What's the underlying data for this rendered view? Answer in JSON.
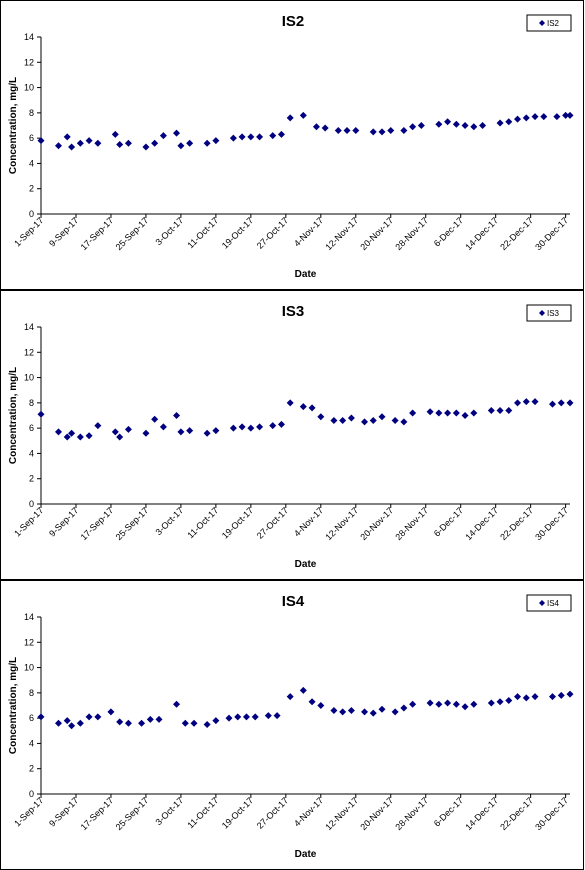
{
  "chart_data": [
    {
      "type": "scatter",
      "title": "IS2",
      "xlabel": "Date",
      "ylabel": "Concentration, mg/L",
      "ylim": [
        0,
        14
      ],
      "yticks": [
        "0",
        "2",
        "4",
        "6",
        "8",
        "10",
        "12",
        "14"
      ],
      "xlim": [
        "2017-09-01",
        "2017-12-31"
      ],
      "xticks": [
        "1-Sep-17",
        "9-Sep-17",
        "17-Sep-17",
        "25-Sep-17",
        "3-Oct-17",
        "11-Oct-17",
        "19-Oct-17",
        "27-Oct-17",
        "4-Nov-17",
        "12-Nov-17",
        "20-Nov-17",
        "28-Nov-17",
        "6-Dec-17",
        "14-Dec-17",
        "22-Dec-17",
        "30-Dec-17"
      ],
      "legend": "top-right",
      "color": "#000080",
      "series": [
        {
          "name": "IS2",
          "points": [
            [
              "2017-09-01",
              5.8
            ],
            [
              "2017-09-05",
              5.4
            ],
            [
              "2017-09-07",
              6.1
            ],
            [
              "2017-09-08",
              5.3
            ],
            [
              "2017-09-10",
              5.6
            ],
            [
              "2017-09-12",
              5.8
            ],
            [
              "2017-09-14",
              5.6
            ],
            [
              "2017-09-18",
              6.3
            ],
            [
              "2017-09-19",
              5.5
            ],
            [
              "2017-09-21",
              5.6
            ],
            [
              "2017-09-25",
              5.3
            ],
            [
              "2017-09-27",
              5.6
            ],
            [
              "2017-09-29",
              6.2
            ],
            [
              "2017-10-02",
              6.4
            ],
            [
              "2017-10-03",
              5.4
            ],
            [
              "2017-10-05",
              5.6
            ],
            [
              "2017-10-09",
              5.6
            ],
            [
              "2017-10-11",
              5.8
            ],
            [
              "2017-10-15",
              6.0
            ],
            [
              "2017-10-17",
              6.1
            ],
            [
              "2017-10-19",
              6.1
            ],
            [
              "2017-10-21",
              6.1
            ],
            [
              "2017-10-24",
              6.2
            ],
            [
              "2017-10-26",
              6.3
            ],
            [
              "2017-10-28",
              7.6
            ],
            [
              "2017-10-31",
              7.8
            ],
            [
              "2017-11-03",
              6.9
            ],
            [
              "2017-11-05",
              6.8
            ],
            [
              "2017-11-08",
              6.6
            ],
            [
              "2017-11-10",
              6.6
            ],
            [
              "2017-11-12",
              6.6
            ],
            [
              "2017-11-16",
              6.5
            ],
            [
              "2017-11-18",
              6.5
            ],
            [
              "2017-11-20",
              6.6
            ],
            [
              "2017-11-23",
              6.6
            ],
            [
              "2017-11-25",
              6.9
            ],
            [
              "2017-11-27",
              7.0
            ],
            [
              "2017-12-01",
              7.1
            ],
            [
              "2017-12-03",
              7.3
            ],
            [
              "2017-12-05",
              7.1
            ],
            [
              "2017-12-07",
              7.0
            ],
            [
              "2017-12-09",
              6.9
            ],
            [
              "2017-12-11",
              7.0
            ],
            [
              "2017-12-15",
              7.2
            ],
            [
              "2017-12-17",
              7.3
            ],
            [
              "2017-12-19",
              7.5
            ],
            [
              "2017-12-21",
              7.6
            ],
            [
              "2017-12-23",
              7.7
            ],
            [
              "2017-12-25",
              7.7
            ],
            [
              "2017-12-28",
              7.7
            ],
            [
              "2017-12-30",
              7.8
            ],
            [
              "2017-12-31",
              7.8
            ]
          ]
        }
      ]
    },
    {
      "type": "scatter",
      "title": "IS3",
      "xlabel": "Date",
      "ylabel": "Concentration, mg/L",
      "ylim": [
        0,
        14
      ],
      "yticks": [
        "0",
        "2",
        "4",
        "6",
        "8",
        "10",
        "12",
        "14"
      ],
      "xlim": [
        "2017-09-01",
        "2017-12-31"
      ],
      "xticks": [
        "1-Sep-17",
        "9-Sep-17",
        "17-Sep-17",
        "25-Sep-17",
        "3-Oct-17",
        "11-Oct-17",
        "19-Oct-17",
        "27-Oct-17",
        "4-Nov-17",
        "12-Nov-17",
        "20-Nov-17",
        "28-Nov-17",
        "6-Dec-17",
        "14-Dec-17",
        "22-Dec-17",
        "30-Dec-17"
      ],
      "legend": "top-right",
      "color": "#000080",
      "series": [
        {
          "name": "IS3",
          "points": [
            [
              "2017-09-01",
              7.1
            ],
            [
              "2017-09-05",
              5.7
            ],
            [
              "2017-09-07",
              5.3
            ],
            [
              "2017-09-08",
              5.6
            ],
            [
              "2017-09-10",
              5.3
            ],
            [
              "2017-09-12",
              5.4
            ],
            [
              "2017-09-14",
              6.2
            ],
            [
              "2017-09-18",
              5.7
            ],
            [
              "2017-09-19",
              5.3
            ],
            [
              "2017-09-21",
              5.9
            ],
            [
              "2017-09-25",
              5.6
            ],
            [
              "2017-09-27",
              6.7
            ],
            [
              "2017-09-29",
              6.1
            ],
            [
              "2017-10-02",
              7.0
            ],
            [
              "2017-10-03",
              5.7
            ],
            [
              "2017-10-05",
              5.8
            ],
            [
              "2017-10-09",
              5.6
            ],
            [
              "2017-10-11",
              5.8
            ],
            [
              "2017-10-15",
              6.0
            ],
            [
              "2017-10-17",
              6.1
            ],
            [
              "2017-10-19",
              6.0
            ],
            [
              "2017-10-21",
              6.1
            ],
            [
              "2017-10-24",
              6.2
            ],
            [
              "2017-10-26",
              6.3
            ],
            [
              "2017-10-28",
              8.0
            ],
            [
              "2017-10-31",
              7.7
            ],
            [
              "2017-11-02",
              7.6
            ],
            [
              "2017-11-04",
              6.9
            ],
            [
              "2017-11-07",
              6.6
            ],
            [
              "2017-11-09",
              6.6
            ],
            [
              "2017-11-11",
              6.8
            ],
            [
              "2017-11-14",
              6.5
            ],
            [
              "2017-11-16",
              6.6
            ],
            [
              "2017-11-18",
              6.9
            ],
            [
              "2017-11-21",
              6.6
            ],
            [
              "2017-11-23",
              6.5
            ],
            [
              "2017-11-25",
              7.2
            ],
            [
              "2017-11-29",
              7.3
            ],
            [
              "2017-12-01",
              7.2
            ],
            [
              "2017-12-03",
              7.2
            ],
            [
              "2017-12-05",
              7.2
            ],
            [
              "2017-12-07",
              7.0
            ],
            [
              "2017-12-09",
              7.2
            ],
            [
              "2017-12-13",
              7.4
            ],
            [
              "2017-12-15",
              7.4
            ],
            [
              "2017-12-17",
              7.4
            ],
            [
              "2017-12-19",
              8.0
            ],
            [
              "2017-12-21",
              8.1
            ],
            [
              "2017-12-23",
              8.1
            ],
            [
              "2017-12-27",
              7.9
            ],
            [
              "2017-12-29",
              8.0
            ],
            [
              "2017-12-31",
              8.0
            ]
          ]
        }
      ]
    },
    {
      "type": "scatter",
      "title": "IS4",
      "xlabel": "Date",
      "ylabel": "Concentration, mg/L",
      "ylim": [
        0,
        14
      ],
      "yticks": [
        "0",
        "2",
        "4",
        "6",
        "8",
        "10",
        "12",
        "14"
      ],
      "xlim": [
        "2017-09-01",
        "2017-12-31"
      ],
      "xticks": [
        "1-Sep-17",
        "9-Sep-17",
        "17-Sep-17",
        "25-Sep-17",
        "3-Oct-17",
        "11-Oct-17",
        "19-Oct-17",
        "27-Oct-17",
        "4-Nov-17",
        "12-Nov-17",
        "20-Nov-17",
        "28-Nov-17",
        "6-Dec-17",
        "14-Dec-17",
        "22-Dec-17",
        "30-Dec-17"
      ],
      "legend": "top-right",
      "color": "#000080",
      "series": [
        {
          "name": "IS4",
          "points": [
            [
              "2017-09-01",
              6.1
            ],
            [
              "2017-09-05",
              5.6
            ],
            [
              "2017-09-07",
              5.8
            ],
            [
              "2017-09-08",
              5.4
            ],
            [
              "2017-09-10",
              5.6
            ],
            [
              "2017-09-12",
              6.1
            ],
            [
              "2017-09-14",
              6.1
            ],
            [
              "2017-09-17",
              6.5
            ],
            [
              "2017-09-19",
              5.7
            ],
            [
              "2017-09-21",
              5.6
            ],
            [
              "2017-09-24",
              5.6
            ],
            [
              "2017-09-26",
              5.9
            ],
            [
              "2017-09-28",
              5.9
            ],
            [
              "2017-10-02",
              7.1
            ],
            [
              "2017-10-04",
              5.6
            ],
            [
              "2017-10-06",
              5.6
            ],
            [
              "2017-10-09",
              5.5
            ],
            [
              "2017-10-11",
              5.8
            ],
            [
              "2017-10-14",
              6.0
            ],
            [
              "2017-10-16",
              6.1
            ],
            [
              "2017-10-18",
              6.1
            ],
            [
              "2017-10-20",
              6.1
            ],
            [
              "2017-10-23",
              6.2
            ],
            [
              "2017-10-25",
              6.2
            ],
            [
              "2017-10-28",
              7.7
            ],
            [
              "2017-10-31",
              8.2
            ],
            [
              "2017-11-02",
              7.3
            ],
            [
              "2017-11-04",
              7.0
            ],
            [
              "2017-11-07",
              6.6
            ],
            [
              "2017-11-09",
              6.5
            ],
            [
              "2017-11-11",
              6.6
            ],
            [
              "2017-11-14",
              6.5
            ],
            [
              "2017-11-16",
              6.4
            ],
            [
              "2017-11-18",
              6.7
            ],
            [
              "2017-11-21",
              6.5
            ],
            [
              "2017-11-23",
              6.8
            ],
            [
              "2017-11-25",
              7.1
            ],
            [
              "2017-11-29",
              7.2
            ],
            [
              "2017-12-01",
              7.1
            ],
            [
              "2017-12-03",
              7.2
            ],
            [
              "2017-12-05",
              7.1
            ],
            [
              "2017-12-07",
              6.9
            ],
            [
              "2017-12-09",
              7.1
            ],
            [
              "2017-12-13",
              7.2
            ],
            [
              "2017-12-15",
              7.3
            ],
            [
              "2017-12-17",
              7.4
            ],
            [
              "2017-12-19",
              7.7
            ],
            [
              "2017-12-21",
              7.6
            ],
            [
              "2017-12-23",
              7.7
            ],
            [
              "2017-12-27",
              7.7
            ],
            [
              "2017-12-29",
              7.8
            ],
            [
              "2017-12-31",
              7.9
            ]
          ]
        }
      ]
    }
  ]
}
